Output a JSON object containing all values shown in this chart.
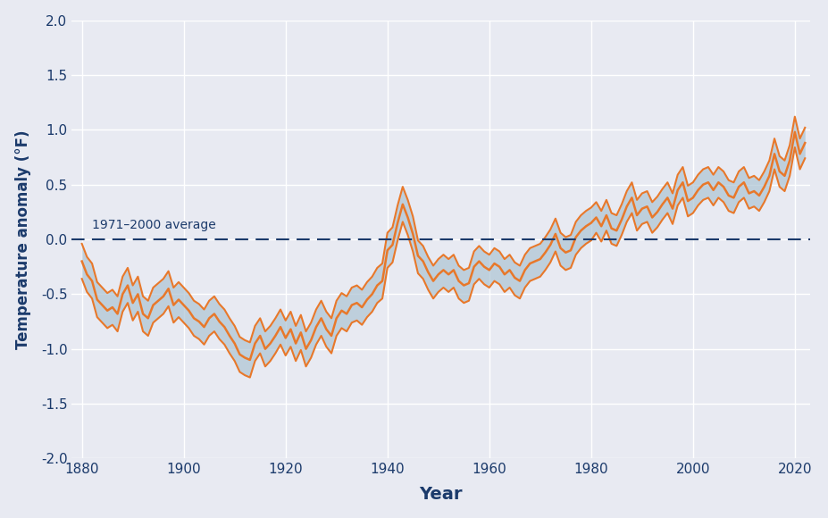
{
  "xlabel": "Year",
  "ylabel": "Temperature anomaly (°F)",
  "xlim": [
    1878,
    2023
  ],
  "ylim": [
    -2.0,
    2.0
  ],
  "yticks": [
    -2.0,
    -1.5,
    -1.0,
    -0.5,
    0.0,
    0.5,
    1.0,
    1.5,
    2.0
  ],
  "xticks": [
    1880,
    1900,
    1920,
    1940,
    1960,
    1980,
    2000,
    2020
  ],
  "avg_label": "1971–2000 average",
  "line_color": "#E8782A",
  "band_color": "#ADC4D4",
  "avg_line_color": "#1B3A6B",
  "axes_facecolor": "#E8EAF2",
  "figure_facecolor": "#E8EAF2",
  "grid_color": "#FFFFFF",
  "label_color": "#1B3A6B",
  "years": [
    1880,
    1881,
    1882,
    1883,
    1884,
    1885,
    1886,
    1887,
    1888,
    1889,
    1890,
    1891,
    1892,
    1893,
    1894,
    1895,
    1896,
    1897,
    1898,
    1899,
    1900,
    1901,
    1902,
    1903,
    1904,
    1905,
    1906,
    1907,
    1908,
    1909,
    1910,
    1911,
    1912,
    1913,
    1914,
    1915,
    1916,
    1917,
    1918,
    1919,
    1920,
    1921,
    1922,
    1923,
    1924,
    1925,
    1926,
    1927,
    1928,
    1929,
    1930,
    1931,
    1932,
    1933,
    1934,
    1935,
    1936,
    1937,
    1938,
    1939,
    1940,
    1941,
    1942,
    1943,
    1944,
    1945,
    1946,
    1947,
    1948,
    1949,
    1950,
    1951,
    1952,
    1953,
    1954,
    1955,
    1956,
    1957,
    1958,
    1959,
    1960,
    1961,
    1962,
    1963,
    1964,
    1965,
    1966,
    1967,
    1968,
    1969,
    1970,
    1971,
    1972,
    1973,
    1974,
    1975,
    1976,
    1977,
    1978,
    1979,
    1980,
    1981,
    1982,
    1983,
    1984,
    1985,
    1986,
    1987,
    1988,
    1989,
    1990,
    1991,
    1992,
    1993,
    1994,
    1995,
    1996,
    1997,
    1998,
    1999,
    2000,
    2001,
    2002,
    2003,
    2004,
    2005,
    2006,
    2007,
    2008,
    2009,
    2010,
    2011,
    2012,
    2013,
    2014,
    2015,
    2016,
    2017,
    2018,
    2019,
    2020,
    2021,
    2022
  ],
  "values": [
    -0.2,
    -0.32,
    -0.38,
    -0.55,
    -0.6,
    -0.65,
    -0.62,
    -0.68,
    -0.5,
    -0.42,
    -0.58,
    -0.5,
    -0.68,
    -0.72,
    -0.6,
    -0.56,
    -0.52,
    -0.45,
    -0.6,
    -0.55,
    -0.6,
    -0.65,
    -0.72,
    -0.75,
    -0.8,
    -0.72,
    -0.68,
    -0.75,
    -0.8,
    -0.88,
    -0.95,
    -1.05,
    -1.08,
    -1.1,
    -0.95,
    -0.88,
    -1.0,
    -0.95,
    -0.88,
    -0.8,
    -0.9,
    -0.82,
    -0.95,
    -0.85,
    -1.0,
    -0.92,
    -0.8,
    -0.72,
    -0.82,
    -0.88,
    -0.72,
    -0.65,
    -0.68,
    -0.6,
    -0.58,
    -0.62,
    -0.55,
    -0.5,
    -0.42,
    -0.38,
    -0.1,
    -0.05,
    0.15,
    0.32,
    0.2,
    0.05,
    -0.15,
    -0.2,
    -0.3,
    -0.38,
    -0.32,
    -0.28,
    -0.32,
    -0.28,
    -0.38,
    -0.42,
    -0.4,
    -0.25,
    -0.2,
    -0.25,
    -0.28,
    -0.22,
    -0.25,
    -0.32,
    -0.28,
    -0.35,
    -0.38,
    -0.28,
    -0.22,
    -0.2,
    -0.18,
    -0.12,
    -0.05,
    0.05,
    -0.08,
    -0.12,
    -0.1,
    0.02,
    0.08,
    0.12,
    0.15,
    0.2,
    0.12,
    0.22,
    0.1,
    0.08,
    0.18,
    0.3,
    0.38,
    0.22,
    0.28,
    0.3,
    0.2,
    0.25,
    0.32,
    0.38,
    0.28,
    0.45,
    0.52,
    0.35,
    0.38,
    0.45,
    0.5,
    0.52,
    0.45,
    0.52,
    0.48,
    0.4,
    0.38,
    0.48,
    0.52,
    0.42,
    0.44,
    0.4,
    0.48,
    0.58,
    0.78,
    0.62,
    0.58,
    0.72,
    0.98,
    0.78,
    0.88
  ],
  "upper": [
    -0.04,
    -0.16,
    -0.22,
    -0.39,
    -0.44,
    -0.49,
    -0.46,
    -0.52,
    -0.34,
    -0.26,
    -0.42,
    -0.34,
    -0.52,
    -0.56,
    -0.44,
    -0.4,
    -0.36,
    -0.29,
    -0.44,
    -0.39,
    -0.44,
    -0.49,
    -0.56,
    -0.59,
    -0.64,
    -0.56,
    -0.52,
    -0.59,
    -0.64,
    -0.72,
    -0.79,
    -0.89,
    -0.92,
    -0.94,
    -0.79,
    -0.72,
    -0.84,
    -0.79,
    -0.72,
    -0.64,
    -0.74,
    -0.66,
    -0.79,
    -0.69,
    -0.84,
    -0.76,
    -0.64,
    -0.56,
    -0.66,
    -0.72,
    -0.56,
    -0.49,
    -0.52,
    -0.44,
    -0.42,
    -0.46,
    -0.39,
    -0.34,
    -0.26,
    -0.22,
    0.06,
    0.11,
    0.31,
    0.48,
    0.36,
    0.21,
    -0.01,
    -0.06,
    -0.16,
    -0.24,
    -0.18,
    -0.14,
    -0.18,
    -0.14,
    -0.24,
    -0.28,
    -0.26,
    -0.11,
    -0.06,
    -0.11,
    -0.14,
    -0.08,
    -0.11,
    -0.18,
    -0.14,
    -0.21,
    -0.24,
    -0.14,
    -0.08,
    -0.06,
    -0.04,
    0.02,
    0.09,
    0.19,
    0.06,
    0.02,
    0.04,
    0.16,
    0.22,
    0.26,
    0.29,
    0.34,
    0.26,
    0.36,
    0.24,
    0.22,
    0.32,
    0.44,
    0.52,
    0.36,
    0.42,
    0.44,
    0.34,
    0.39,
    0.46,
    0.52,
    0.42,
    0.59,
    0.66,
    0.49,
    0.52,
    0.59,
    0.64,
    0.66,
    0.59,
    0.66,
    0.62,
    0.54,
    0.52,
    0.62,
    0.66,
    0.56,
    0.58,
    0.54,
    0.62,
    0.72,
    0.92,
    0.76,
    0.72,
    0.86,
    1.12,
    0.92,
    1.02
  ],
  "lower": [
    -0.36,
    -0.48,
    -0.54,
    -0.71,
    -0.76,
    -0.81,
    -0.78,
    -0.84,
    -0.66,
    -0.58,
    -0.74,
    -0.66,
    -0.84,
    -0.88,
    -0.76,
    -0.72,
    -0.68,
    -0.61,
    -0.76,
    -0.71,
    -0.76,
    -0.81,
    -0.88,
    -0.91,
    -0.96,
    -0.88,
    -0.84,
    -0.91,
    -0.96,
    -1.04,
    -1.11,
    -1.21,
    -1.24,
    -1.26,
    -1.11,
    -1.04,
    -1.16,
    -1.11,
    -1.04,
    -0.96,
    -1.06,
    -0.98,
    -1.11,
    -1.01,
    -1.16,
    -1.08,
    -0.96,
    -0.88,
    -0.98,
    -1.04,
    -0.88,
    -0.81,
    -0.84,
    -0.76,
    -0.74,
    -0.78,
    -0.71,
    -0.66,
    -0.58,
    -0.54,
    -0.26,
    -0.21,
    -0.01,
    0.16,
    0.04,
    -0.11,
    -0.31,
    -0.36,
    -0.46,
    -0.54,
    -0.48,
    -0.44,
    -0.48,
    -0.44,
    -0.54,
    -0.58,
    -0.56,
    -0.41,
    -0.36,
    -0.41,
    -0.44,
    -0.38,
    -0.41,
    -0.48,
    -0.44,
    -0.51,
    -0.54,
    -0.44,
    -0.38,
    -0.36,
    -0.34,
    -0.28,
    -0.21,
    -0.11,
    -0.24,
    -0.28,
    -0.26,
    -0.14,
    -0.08,
    -0.04,
    -0.01,
    0.06,
    -0.02,
    0.08,
    -0.04,
    -0.06,
    0.04,
    0.16,
    0.24,
    0.08,
    0.14,
    0.16,
    0.06,
    0.11,
    0.18,
    0.24,
    0.14,
    0.31,
    0.38,
    0.21,
    0.24,
    0.31,
    0.36,
    0.38,
    0.31,
    0.38,
    0.34,
    0.26,
    0.24,
    0.34,
    0.38,
    0.28,
    0.3,
    0.26,
    0.34,
    0.44,
    0.64,
    0.48,
    0.44,
    0.58,
    0.84,
    0.64,
    0.74
  ]
}
